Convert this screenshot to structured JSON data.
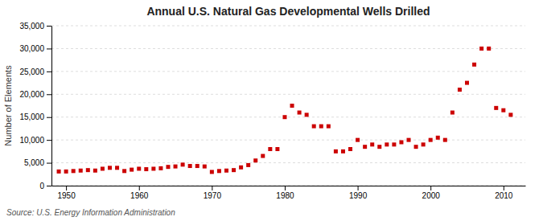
{
  "chart_data": {
    "type": "scatter",
    "title": "Annual U.S. Natural Gas Developmental Wells Drilled",
    "y_label": "Number of Elements",
    "source": "Source: U.S. Energy Information Administration",
    "color": "#cc0000",
    "marker": "square",
    "grid": true,
    "xlim": [
      1948,
      2013
    ],
    "xticks": [
      1950,
      1960,
      1970,
      1980,
      1990,
      2000,
      2010
    ],
    "ylim": [
      0,
      35000
    ],
    "yticks": [
      0,
      {
        "value": 5000,
        "label": "5,000"
      },
      {
        "value": 10000,
        "label": "10,000"
      },
      {
        "value": 15000,
        "label": "15,000"
      },
      {
        "value": 20000,
        "label": "20,000"
      },
      {
        "value": 25000,
        "label": "25,000"
      },
      {
        "value": 30000,
        "label": "30,000"
      },
      {
        "value": 35000,
        "label": "35,000"
      }
    ],
    "x": [
      1949,
      1950,
      1951,
      1952,
      1953,
      1954,
      1955,
      1956,
      1957,
      1958,
      1959,
      1960,
      1961,
      1962,
      1963,
      1964,
      1965,
      1966,
      1967,
      1968,
      1969,
      1970,
      1971,
      1972,
      1973,
      1974,
      1975,
      1976,
      1977,
      1978,
      1979,
      1980,
      1981,
      1982,
      1983,
      1984,
      1985,
      1986,
      1987,
      1988,
      1989,
      1990,
      1991,
      1992,
      1993,
      1994,
      1995,
      1996,
      1997,
      1998,
      1999,
      2000,
      2001,
      2002,
      2003,
      2004,
      2005,
      2006,
      2007,
      2008,
      2009,
      2010,
      2011
    ],
    "values": [
      3100,
      3100,
      3200,
      3300,
      3400,
      3300,
      3700,
      3900,
      3900,
      3200,
      3500,
      3700,
      3600,
      3700,
      3800,
      4100,
      4200,
      4600,
      4300,
      4300,
      4200,
      3000,
      3200,
      3300,
      3400,
      4000,
      4500,
      5500,
      6500,
      8000,
      8000,
      15000,
      17500,
      16000,
      15500,
      13000,
      13000,
      13000,
      7500,
      7500,
      8000,
      10000,
      8500,
      9000,
      8500,
      9000,
      9000,
      9500,
      10000,
      8500,
      9000,
      10000,
      10500,
      10000,
      16000,
      21000,
      22500,
      26500,
      30000,
      30000,
      17000,
      16500,
      15500
    ]
  }
}
